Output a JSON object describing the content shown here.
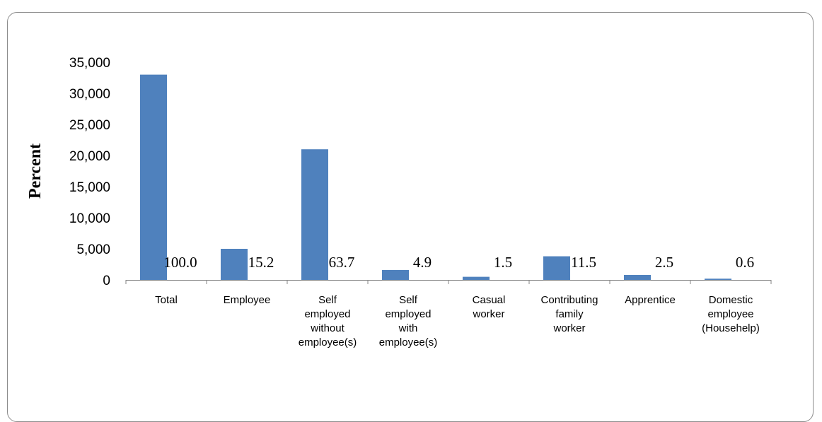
{
  "chart_data": {
    "type": "bar",
    "ylabel": "Percent",
    "xlabel": "",
    "ylim": [
      0,
      35000
    ],
    "yticks": [
      "0",
      "5,000",
      "10,000",
      "15,000",
      "20,000",
      "25,000",
      "30,000",
      "35,000"
    ],
    "categories": [
      [
        "Total"
      ],
      [
        "Employee"
      ],
      [
        "Self",
        "employed",
        "without",
        "employee(s)"
      ],
      [
        "Self",
        "employed",
        "with",
        "employee(s)"
      ],
      [
        "Casual",
        "worker"
      ],
      [
        "Contributing",
        "family",
        "worker"
      ],
      [
        "Apprentice"
      ],
      [
        "Domestic",
        "employee",
        "(Househelp)"
      ]
    ],
    "values": [
      33000,
      5000,
      21000,
      1600,
      500,
      3800,
      800,
      200
    ],
    "data_labels": [
      "100.0",
      "15.2",
      "63.7",
      "4.9",
      "1.5",
      "11.5",
      "2.5",
      "0.6"
    ],
    "bar_color": "#4F81BD",
    "grid": false,
    "legend": "none"
  }
}
